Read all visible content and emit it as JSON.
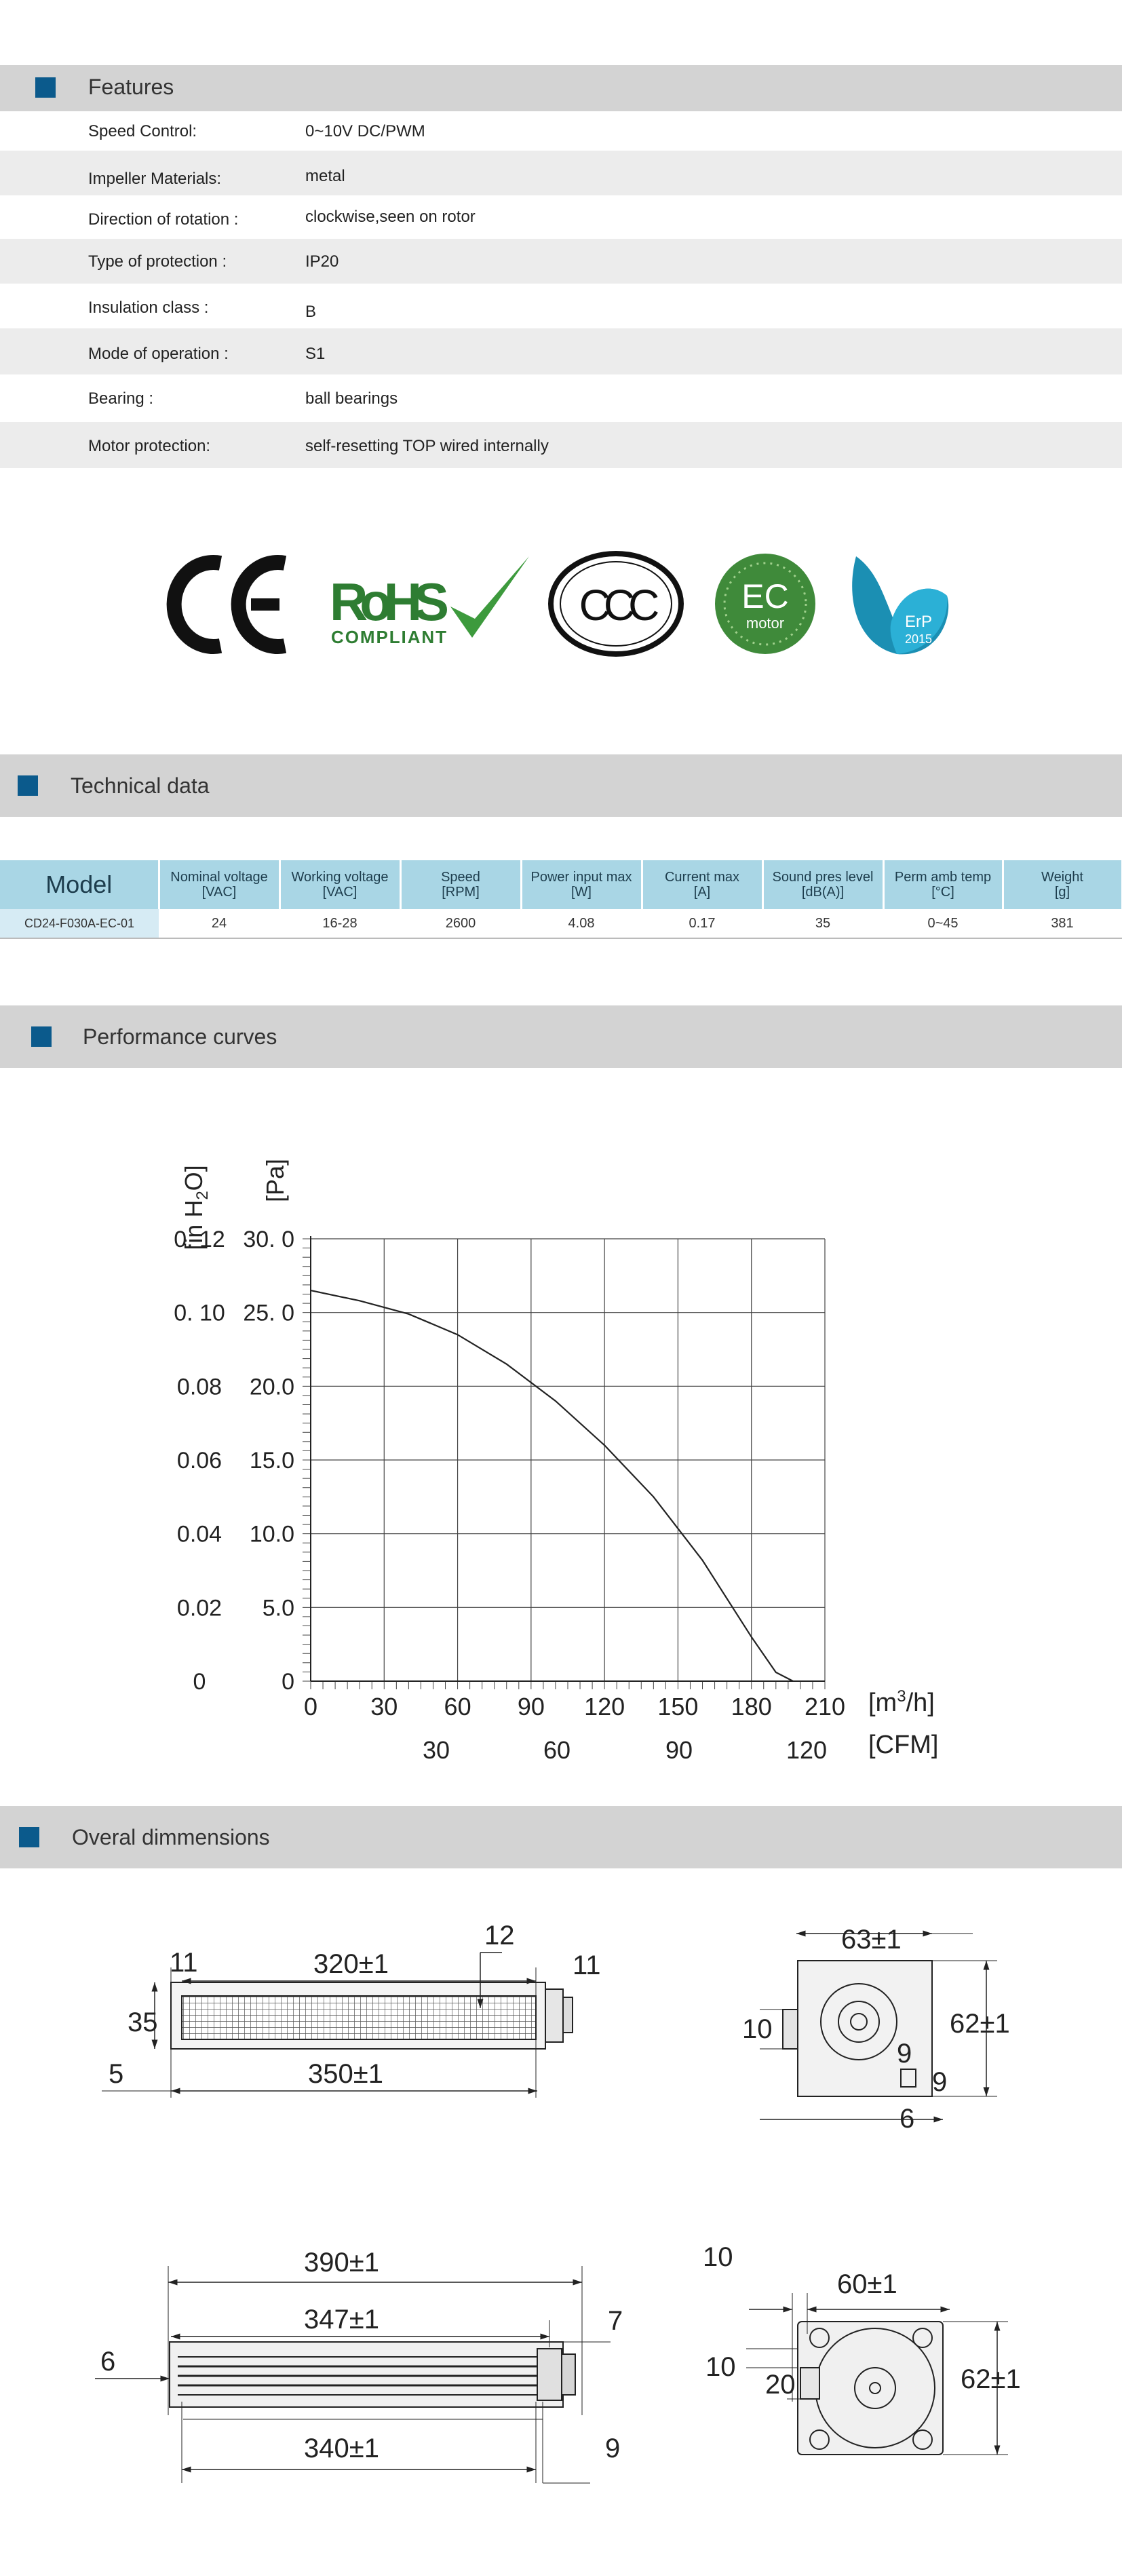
{
  "sections": {
    "features": "Features",
    "technical": "Technical data",
    "performance": "Performance curves",
    "dimensions": "Overal dimmensions"
  },
  "features": [
    {
      "key": "Speed Control:",
      "value": "0~10V DC/PWM"
    },
    {
      "key": "Impeller Materials:",
      "value": "metal"
    },
    {
      "key": "Direction  of  rotation  :",
      "value": "clockwise,seen on rotor"
    },
    {
      "key": "Type of protection :",
      "value": "IP20"
    },
    {
      "key": "Insulation  class :",
      "value": "B"
    },
    {
      "key": "Mode of operation :",
      "value": "S1"
    },
    {
      "key": "Bearing :",
      "value": "ball  bearings"
    },
    {
      "key": "Motor protection:",
      "value": "self-resetting TOP wired internally"
    }
  ],
  "certifications": {
    "ce": "CE",
    "rohs": "RoHS",
    "rohs_sub": "COMPLIANT",
    "ccc": "CCC",
    "ec_top": "EC",
    "ec_bottom": "motor",
    "erp_top": "ErP",
    "erp_bottom": "2015"
  },
  "table": {
    "headers": [
      {
        "l1": "Model",
        "l2": ""
      },
      {
        "l1": "Nominal voltage",
        "l2": "[VAC]"
      },
      {
        "l1": "Working voltage",
        "l2": "[VAC]"
      },
      {
        "l1": "Speed",
        "l2": "[RPM]"
      },
      {
        "l1": "Power input max",
        "l2": "[W]"
      },
      {
        "l1": "Current max",
        "l2": "[A]"
      },
      {
        "l1": "Sound pres level",
        "l2": "[dB(A)]"
      },
      {
        "l1": "Perm amb temp",
        "l2": "[°C]"
      },
      {
        "l1": "Weight",
        "l2": "[g]"
      }
    ],
    "row": [
      "CD24-F030A-EC-01",
      "24",
      "16-28",
      "2600",
      "4.08",
      "0.17",
      "35",
      "0~45",
      "381"
    ]
  },
  "chart_data": {
    "type": "line",
    "ylabel_left": "[in H2O]",
    "ylabel_right": "[Pa]",
    "xlabel_primary": "[m3/h]",
    "xlabel_secondary": "[CFM]",
    "y_ticks_pa": [
      "30. 0",
      "25. 0",
      "20.0",
      "15.0",
      "10.0",
      "5.0",
      "0"
    ],
    "y_ticks_inh2o": [
      "0. 12",
      "0. 10",
      "0.08",
      "0.06",
      "0.04",
      "0.02",
      "0"
    ],
    "x_ticks_m3h": [
      "0",
      "30",
      "60",
      "90",
      "120",
      "150",
      "180",
      "210"
    ],
    "x_ticks_cfm": [
      "30",
      "60",
      "90",
      "120"
    ],
    "xlim": [
      0,
      210
    ],
    "ylim": [
      0,
      30
    ],
    "grid": true,
    "series": [
      {
        "x": [
          0,
          20,
          40,
          60,
          80,
          100,
          120,
          140,
          160,
          180,
          190,
          197
        ],
        "y": [
          26.5,
          25.8,
          24.9,
          23.5,
          21.5,
          19.0,
          16.0,
          12.5,
          8.2,
          3.0,
          0.6,
          0
        ]
      }
    ]
  },
  "dimensions": {
    "view1": {
      "d1": "11",
      "d2": "320±1",
      "d3": "12",
      "d4": "11",
      "d5": "35",
      "d6": "5",
      "d7": "350±1"
    },
    "view2": {
      "d1": "63±1",
      "d2": "10",
      "d3": "62±1",
      "d4": "9",
      "d5": "9",
      "d6": "6"
    },
    "view3": {
      "d1": "390±1",
      "d2": "347±1",
      "d3": "7",
      "d4": "6",
      "d5": "340±1",
      "d6": "9"
    },
    "view4": {
      "d1": "10",
      "d2": "60±1",
      "d3": "10",
      "d4": "62±1",
      "d5": "20"
    }
  }
}
